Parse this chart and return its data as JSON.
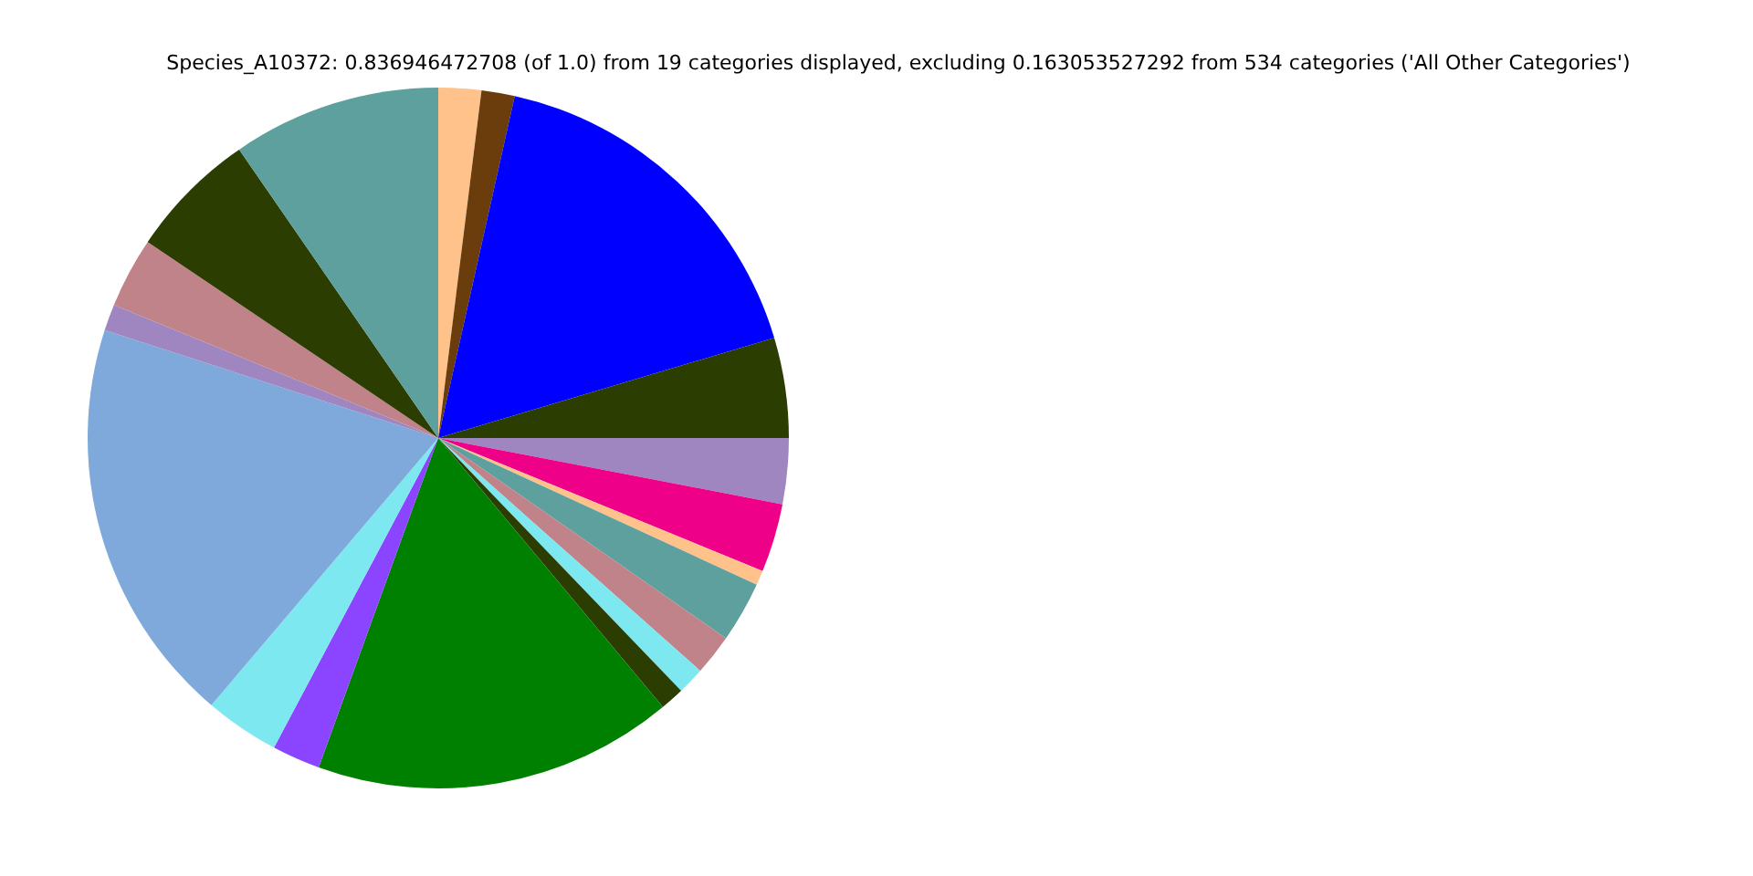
{
  "chart_data": {
    "type": "pie",
    "title": "Species_A10372: 0.836946472708 (of 1.0) from 19 categories displayed, excluding 0.163053527292 from 534 categories ('All Other Categories')",
    "categories": [
      null,
      null,
      null,
      null,
      null,
      null,
      null,
      null,
      null,
      null,
      null,
      null,
      null,
      null,
      null,
      null,
      null,
      null,
      null
    ],
    "values": [
      1.97,
      1.53,
      16.89,
      4.61,
      3.03,
      3.17,
      0.67,
      2.81,
      1.89,
      1.25,
      1.11,
      16.61,
      2.22,
      3.44,
      18.78,
      1.22,
      3.25,
      5.94,
      9.61
    ],
    "colors": [
      "#ffc28a",
      "#6b3d0c",
      "#0000ff",
      "#2b3d00",
      "#a086c0",
      "#ee0088",
      "#ffc28a",
      "#5da09e",
      "#c0838a",
      "#7de8f0",
      "#2b3d00",
      "#008000",
      "#8b44ff",
      "#7de8f0",
      "#7ea9da",
      "#a086c0",
      "#c0838a",
      "#2b3d00",
      "#5da09e"
    ],
    "legend": false
  }
}
